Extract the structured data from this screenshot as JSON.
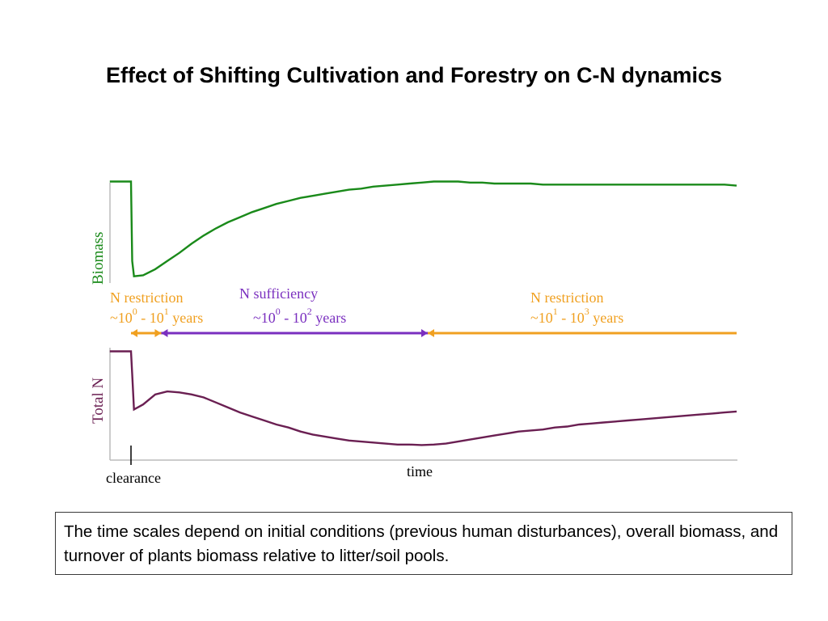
{
  "page": {
    "title": "Effect of Shifting Cultivation and Forestry on C-N dynamics",
    "caption": "The time scales depend on initial conditions (previous human disturbances), overall biomass, and turnover of plants biomass relative to litter/soil pools."
  },
  "chart_data": {
    "type": "line",
    "title": "",
    "xlabel": "time",
    "x_marker": "clearance",
    "grid": false,
    "x_range": [
      0,
      100
    ],
    "series": [
      {
        "name": "Biomass",
        "color": "#1a8a1a",
        "ylim": [
          0,
          100
        ],
        "points": [
          [
            -3.5,
            98
          ],
          [
            0,
            98
          ],
          [
            0.2,
            20
          ],
          [
            0.5,
            5
          ],
          [
            2,
            6
          ],
          [
            4,
            12
          ],
          [
            6,
            20
          ],
          [
            8,
            28
          ],
          [
            10,
            37
          ],
          [
            12,
            45
          ],
          [
            14,
            52
          ],
          [
            16,
            58
          ],
          [
            18,
            63
          ],
          [
            20,
            68
          ],
          [
            22,
            72
          ],
          [
            24,
            76
          ],
          [
            26,
            79
          ],
          [
            28,
            82
          ],
          [
            30,
            84
          ],
          [
            32,
            86
          ],
          [
            34,
            88
          ],
          [
            36,
            90
          ],
          [
            38,
            91
          ],
          [
            40,
            93
          ],
          [
            42,
            94
          ],
          [
            44,
            95
          ],
          [
            46,
            96
          ],
          [
            48,
            97
          ],
          [
            50,
            98
          ],
          [
            52,
            98
          ],
          [
            54,
            98
          ],
          [
            56,
            97
          ],
          [
            58,
            97
          ],
          [
            60,
            96
          ],
          [
            62,
            96
          ],
          [
            64,
            96
          ],
          [
            66,
            96
          ],
          [
            68,
            95
          ],
          [
            70,
            95
          ],
          [
            72,
            95
          ],
          [
            74,
            95
          ],
          [
            76,
            95
          ],
          [
            78,
            95
          ],
          [
            80,
            95
          ],
          [
            82,
            95
          ],
          [
            84,
            95
          ],
          [
            86,
            95
          ],
          [
            88,
            95
          ],
          [
            90,
            95
          ],
          [
            92,
            95
          ],
          [
            94,
            95
          ],
          [
            96,
            95
          ],
          [
            98,
            95
          ],
          [
            100,
            94
          ]
        ]
      },
      {
        "name": "Total N",
        "color": "#6a1f52",
        "ylim": [
          0,
          100
        ],
        "points": [
          [
            -3.5,
            98
          ],
          [
            0,
            98
          ],
          [
            0.2,
            75
          ],
          [
            0.5,
            40
          ],
          [
            2,
            45
          ],
          [
            4,
            55
          ],
          [
            6,
            58
          ],
          [
            8,
            57
          ],
          [
            10,
            55
          ],
          [
            12,
            52
          ],
          [
            14,
            47
          ],
          [
            16,
            42
          ],
          [
            18,
            37
          ],
          [
            20,
            33
          ],
          [
            22,
            29
          ],
          [
            24,
            25
          ],
          [
            26,
            22
          ],
          [
            28,
            18
          ],
          [
            30,
            15
          ],
          [
            32,
            13
          ],
          [
            34,
            11
          ],
          [
            36,
            9
          ],
          [
            38,
            8
          ],
          [
            40,
            7
          ],
          [
            42,
            6
          ],
          [
            44,
            5
          ],
          [
            46,
            5
          ],
          [
            48,
            4.5
          ],
          [
            50,
            5
          ],
          [
            52,
            6
          ],
          [
            54,
            8
          ],
          [
            56,
            10
          ],
          [
            58,
            12
          ],
          [
            60,
            14
          ],
          [
            62,
            16
          ],
          [
            64,
            18
          ],
          [
            66,
            19
          ],
          [
            68,
            20
          ],
          [
            70,
            22
          ],
          [
            72,
            23
          ],
          [
            74,
            25
          ],
          [
            76,
            26
          ],
          [
            78,
            27
          ],
          [
            80,
            28
          ],
          [
            82,
            29
          ],
          [
            84,
            30
          ],
          [
            86,
            31
          ],
          [
            88,
            32
          ],
          [
            90,
            33
          ],
          [
            92,
            34
          ],
          [
            94,
            35
          ],
          [
            96,
            36
          ],
          [
            98,
            37
          ],
          [
            100,
            38
          ]
        ]
      }
    ],
    "phases": [
      {
        "label": "N restriction",
        "scale_base": "~10",
        "scale_from_exp": "0",
        "scale_mid": " - 10",
        "scale_to_exp": "1",
        "scale_unit": " years",
        "color": "#f0a020",
        "x_start": 0,
        "x_end": 5
      },
      {
        "label": "N sufficiency",
        "scale_base": "~10",
        "scale_from_exp": "0",
        "scale_mid": " - 10",
        "scale_to_exp": "2",
        "scale_unit": " years",
        "color": "#7a2fbf",
        "x_start": 5,
        "x_end": 49
      },
      {
        "label": "N restriction",
        "scale_base": "~10",
        "scale_from_exp": "1",
        "scale_mid": " - 10",
        "scale_to_exp": "3",
        "scale_unit": " years",
        "color": "#f0a020",
        "x_start": 49,
        "x_end": 100
      }
    ]
  }
}
